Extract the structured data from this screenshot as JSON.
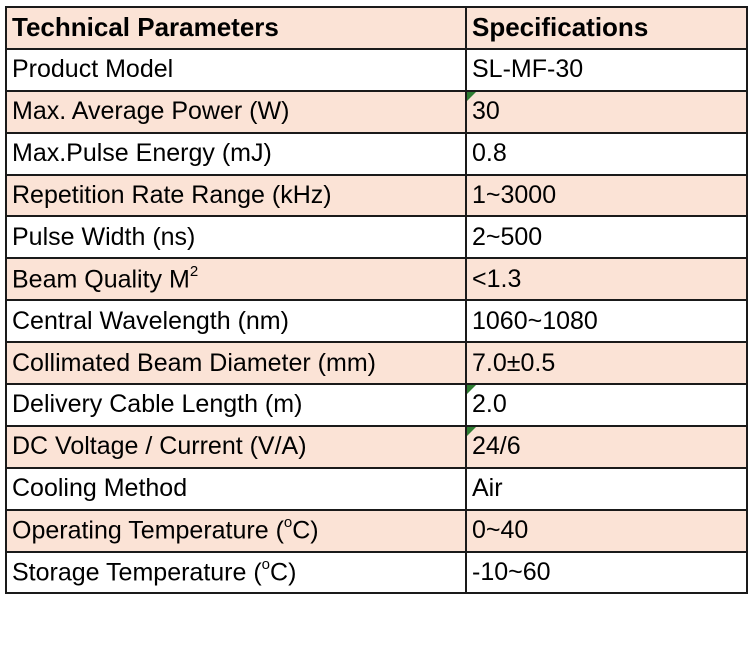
{
  "table": {
    "header": {
      "param": "Technical Parameters",
      "spec": "Specifications"
    },
    "rows": [
      {
        "param": "Product Model",
        "value": "SL-MF-30",
        "tint": false,
        "flag": false
      },
      {
        "param": "Max. Average Power (W)",
        "value": "30",
        "tint": true,
        "flag": true
      },
      {
        "param": "Max.Pulse Energy (mJ)",
        "value": "0.8",
        "tint": false,
        "flag": false
      },
      {
        "param": "Repetition Rate Range (kHz)",
        "value": "1~3000",
        "tint": true,
        "flag": false
      },
      {
        "param": "Pulse Width (ns)",
        "value": "2~500",
        "tint": false,
        "flag": false
      },
      {
        "param": "Beam Quality M",
        "sup": "2",
        "value": "<1.3",
        "tint": true,
        "flag": false
      },
      {
        "param": "Central Wavelength (nm)",
        "value": "1060~1080",
        "tint": false,
        "flag": false
      },
      {
        "param": "Collimated Beam Diameter (mm)",
        "value": "7.0±0.5",
        "tint": true,
        "flag": false
      },
      {
        "param": "Delivery Cable Length (m)",
        "value": "2.0",
        "tint": false,
        "flag": true
      },
      {
        "param": "DC Voltage / Current (V/A)",
        "value": "24/6",
        "tint": true,
        "flag": true
      },
      {
        "param": "Cooling Method",
        "value": "Air",
        "tint": false,
        "flag": false
      },
      {
        "param": "Operating Temperature (",
        "sup": "o",
        "param_tail": "C)",
        "value": "0~40",
        "tint": true,
        "flag": false
      },
      {
        "param": "Storage Temperature (",
        "sup": "o",
        "param_tail": "C)",
        "value": "-10~60",
        "tint": false,
        "flag": false
      }
    ]
  },
  "colors": {
    "header_bg": "#fbe3d6",
    "tint_bg": "#fbe3d6",
    "plain_bg": "#ffffff",
    "border": "#1a1a1a",
    "flag": "#2e7d32"
  }
}
